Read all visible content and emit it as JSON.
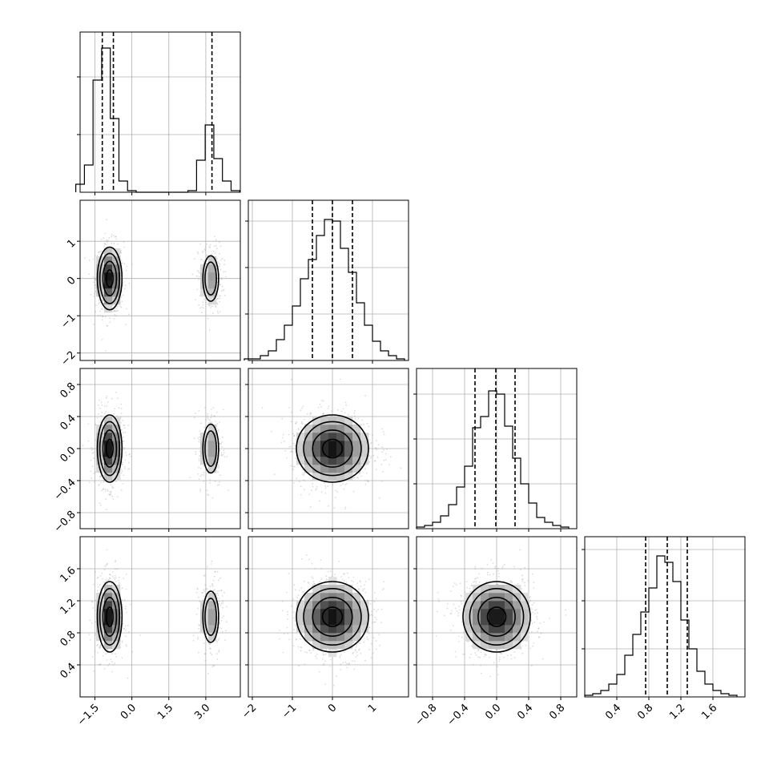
{
  "chart_data": {
    "type": "corner",
    "parameters": 4,
    "grid": true,
    "title": "",
    "panels": [
      {
        "kind": "hist1d",
        "row": 0,
        "col": 0,
        "xlim": [
          -2.1,
          4.4
        ],
        "ylim": [
          0,
          1.0
        ],
        "bins_x": [
          -2.1,
          -1.75,
          -1.4,
          -1.05,
          -0.7,
          -0.35,
          0.0,
          0.35,
          0.7,
          1.05,
          1.4,
          1.75,
          2.1,
          2.45,
          2.8,
          3.15,
          3.5,
          3.85,
          4.2
        ],
        "counts": [
          0.05,
          0.17,
          0.7,
          0.9,
          0.46,
          0.07,
          0.01,
          0.0,
          0.0,
          0.0,
          0.0,
          0.0,
          0.0,
          0.01,
          0.2,
          0.42,
          0.21,
          0.07,
          0.01
        ],
        "quantiles": [
          -1.2,
          -0.75,
          3.25
        ],
        "yticks": [
          0.36,
          0.72
        ],
        "xgrid": [
          -1.5,
          0.0,
          1.5,
          3.0
        ],
        "ygrid": [
          0.36,
          0.72
        ]
      },
      {
        "kind": "hist1d",
        "row": 1,
        "col": 1,
        "xlim": [
          -2.1,
          1.9
        ],
        "ylim": [
          0,
          1.0
        ],
        "bins_x": [
          -2.1,
          -1.9,
          -1.7,
          -1.5,
          -1.3,
          -1.1,
          -0.9,
          -0.7,
          -0.5,
          -0.3,
          -0.1,
          0.1,
          0.3,
          0.5,
          0.7,
          0.9,
          1.1,
          1.3,
          1.5,
          1.7
        ],
        "counts": [
          0.01,
          0.01,
          0.03,
          0.06,
          0.13,
          0.22,
          0.34,
          0.51,
          0.63,
          0.78,
          0.88,
          0.87,
          0.7,
          0.55,
          0.36,
          0.22,
          0.12,
          0.06,
          0.03,
          0.01
        ],
        "quantiles": [
          -0.5,
          0.0,
          0.5
        ],
        "yticks": [
          0.29,
          0.58,
          0.87
        ],
        "xgrid": [
          -2,
          -1,
          0,
          1
        ],
        "ygrid": [
          0.29,
          0.58,
          0.87
        ]
      },
      {
        "kind": "hist1d",
        "row": 2,
        "col": 2,
        "xlim": [
          -1.0,
          1.0
        ],
        "ylim": [
          0,
          1.0
        ],
        "bins_x": [
          -0.95,
          -0.85,
          -0.75,
          -0.65,
          -0.55,
          -0.45,
          -0.35,
          -0.25,
          -0.15,
          -0.05,
          0.05,
          0.15,
          0.25,
          0.35,
          0.45,
          0.55,
          0.65,
          0.75,
          0.85
        ],
        "counts": [
          0.01,
          0.02,
          0.04,
          0.08,
          0.15,
          0.26,
          0.39,
          0.63,
          0.7,
          0.86,
          0.84,
          0.64,
          0.44,
          0.28,
          0.16,
          0.07,
          0.04,
          0.02,
          0.01
        ],
        "quantiles": [
          -0.27,
          -0.01,
          0.23
        ],
        "yticks": [
          0.28,
          0.56,
          0.84
        ],
        "xgrid": [
          -0.8,
          -0.4,
          0.0,
          0.4,
          0.8
        ],
        "ygrid": [
          0.28,
          0.56,
          0.84
        ]
      },
      {
        "kind": "hist1d",
        "row": 3,
        "col": 3,
        "xlim": [
          0.0,
          2.0
        ],
        "ylim": [
          0,
          1.0
        ],
        "bins_x": [
          0.05,
          0.15,
          0.25,
          0.35,
          0.45,
          0.55,
          0.65,
          0.75,
          0.85,
          0.95,
          1.05,
          1.15,
          1.25,
          1.35,
          1.45,
          1.55,
          1.65,
          1.75,
          1.85
        ],
        "counts": [
          0.01,
          0.02,
          0.04,
          0.08,
          0.14,
          0.26,
          0.39,
          0.53,
          0.68,
          0.88,
          0.84,
          0.72,
          0.48,
          0.3,
          0.16,
          0.08,
          0.04,
          0.02,
          0.01
        ],
        "quantiles": [
          0.76,
          1.03,
          1.28
        ],
        "yticks": [
          0.3,
          0.6,
          0.92
        ],
        "xgrid": [
          0.4,
          0.8,
          1.2,
          1.6
        ],
        "ygrid": [
          0.3,
          0.6,
          0.92
        ]
      },
      {
        "kind": "hist2d",
        "row": 1,
        "col": 0,
        "xlim": [
          -2.1,
          4.4
        ],
        "ylim": [
          -2.2,
          2.1
        ],
        "blobs": [
          {
            "cx": -0.9,
            "cy": 0.0,
            "sx": 0.25,
            "sy": 0.42,
            "peak": 1.0
          },
          {
            "cx": 3.2,
            "cy": 0.0,
            "sx": 0.22,
            "sy": 0.42,
            "peak": 0.42
          }
        ],
        "xgrid": [
          -1.5,
          0.0,
          1.5,
          3.0
        ],
        "ygrid": [
          -2,
          -1,
          0,
          1
        ]
      },
      {
        "kind": "hist2d",
        "row": 2,
        "col": 0,
        "xlim": [
          -2.1,
          4.4
        ],
        "ylim": [
          -1.0,
          1.0
        ],
        "blobs": [
          {
            "cx": -0.9,
            "cy": 0.0,
            "sx": 0.25,
            "sy": 0.21,
            "peak": 1.0
          },
          {
            "cx": 3.2,
            "cy": 0.0,
            "sx": 0.22,
            "sy": 0.21,
            "peak": 0.42
          }
        ],
        "xgrid": [
          -1.5,
          0.0,
          1.5,
          3.0
        ],
        "ygrid": [
          -0.8,
          -0.4,
          0.0,
          0.4,
          0.8
        ]
      },
      {
        "kind": "hist2d",
        "row": 2,
        "col": 1,
        "xlim": [
          -2.1,
          1.9
        ],
        "ylim": [
          -1.0,
          1.0
        ],
        "blobs": [
          {
            "cx": 0.0,
            "cy": 0.0,
            "sx": 0.45,
            "sy": 0.21,
            "peak": 1.0
          }
        ],
        "xgrid": [
          -2,
          -1,
          0,
          1
        ],
        "ygrid": [
          -0.8,
          -0.4,
          0.0,
          0.4,
          0.8
        ]
      },
      {
        "kind": "hist2d",
        "row": 3,
        "col": 0,
        "xlim": [
          -2.1,
          4.4
        ],
        "ylim": [
          0.0,
          2.0
        ],
        "blobs": [
          {
            "cx": -0.9,
            "cy": 1.0,
            "sx": 0.25,
            "sy": 0.22,
            "peak": 1.0
          },
          {
            "cx": 3.2,
            "cy": 1.0,
            "sx": 0.22,
            "sy": 0.22,
            "peak": 0.42
          }
        ],
        "xgrid": [
          -1.5,
          0.0,
          1.5,
          3.0
        ],
        "ygrid": [
          0.4,
          0.8,
          1.2,
          1.6
        ]
      },
      {
        "kind": "hist2d",
        "row": 3,
        "col": 1,
        "xlim": [
          -2.1,
          1.9
        ],
        "ylim": [
          0.0,
          2.0
        ],
        "blobs": [
          {
            "cx": 0.0,
            "cy": 1.0,
            "sx": 0.45,
            "sy": 0.22,
            "peak": 1.0
          }
        ],
        "xgrid": [
          -2,
          -1,
          0,
          1
        ],
        "ygrid": [
          0.4,
          0.8,
          1.2,
          1.6
        ]
      },
      {
        "kind": "hist2d",
        "row": 3,
        "col": 2,
        "xlim": [
          -1.0,
          1.0
        ],
        "ylim": [
          0.0,
          2.0
        ],
        "blobs": [
          {
            "cx": 0.0,
            "cy": 1.0,
            "sx": 0.21,
            "sy": 0.22,
            "peak": 1.0
          }
        ],
        "xgrid": [
          -0.8,
          -0.4,
          0.0,
          0.4,
          0.8
        ],
        "ygrid": [
          0.4,
          0.8,
          1.2,
          1.6
        ]
      }
    ],
    "tick_labels": {
      "y_row1": {
        "values": [
          -2,
          -1,
          0,
          1
        ],
        "labels": [
          "−2",
          "−1",
          "0",
          "1"
        ]
      },
      "y_row2": {
        "values": [
          -0.8,
          -0.4,
          0.0,
          0.4,
          0.8
        ],
        "labels": [
          "−0.8",
          "−0.4",
          "0.0",
          "0.4",
          "0.8"
        ]
      },
      "y_row3": {
        "values": [
          0.4,
          0.8,
          1.2,
          1.6
        ],
        "labels": [
          "0.4",
          "0.8",
          "1.2",
          "1.6"
        ]
      },
      "x_col0": {
        "values": [
          -1.5,
          0.0,
          1.5,
          3.0
        ],
        "labels": [
          "−1.5",
          "0.0",
          "1.5",
          "3.0"
        ]
      },
      "x_col1": {
        "values": [
          -2,
          -1,
          0,
          1
        ],
        "labels": [
          "−2",
          "−1",
          "0",
          "1"
        ]
      },
      "x_col2": {
        "values": [
          -0.8,
          -0.4,
          0.0,
          0.4,
          0.8
        ],
        "labels": [
          "−0.8",
          "−0.4",
          "0.0",
          "0.4",
          "0.8"
        ]
      },
      "x_col3": {
        "values": [
          0.4,
          0.8,
          1.2,
          1.6
        ],
        "labels": [
          "0.4",
          "0.8",
          "1.2",
          "1.6"
        ]
      }
    }
  }
}
